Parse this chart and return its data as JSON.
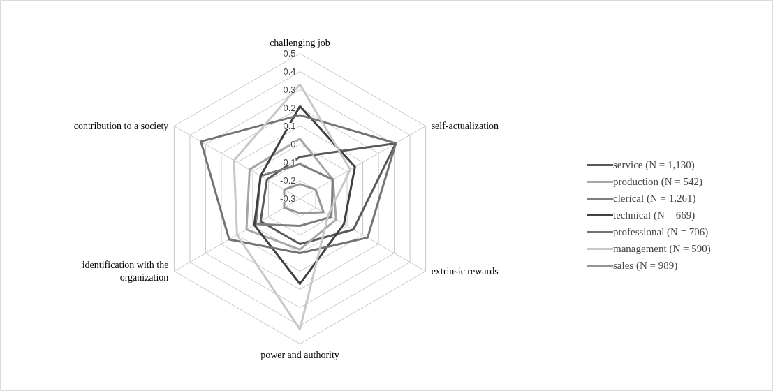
{
  "chart_data": {
    "type": "radar",
    "categories": [
      "challenging job",
      "self-actualization",
      "extrinsic rewards",
      "power and authority",
      "identification with the\norganization",
      "contribution to a society"
    ],
    "ylim": [
      -0.3,
      0.5
    ],
    "yticks": [
      -0.3,
      -0.2,
      -0.1,
      0,
      0.1,
      0.2,
      0.3,
      0.4,
      0.5
    ],
    "grid": true,
    "legend": "right",
    "line_style": "solid",
    "marker": "none",
    "series": [
      {
        "name": "service (N = 1,130)",
        "color": "#595959",
        "values": [
          -0.07,
          0.31,
          0.04,
          -0.05,
          -0.05,
          -0.09
        ]
      },
      {
        "name": "production (N = 542)",
        "color": "#a6a6a6",
        "values": [
          0.03,
          -0.09,
          -0.07,
          -0.02,
          0.04,
          0.02
        ]
      },
      {
        "name": "clerical (N = 1,261)",
        "color": "#7f7f7f",
        "values": [
          -0.11,
          -0.09,
          -0.1,
          -0.15,
          -0.02,
          -0.05
        ]
      },
      {
        "name": "technical (N = 669)",
        "color": "#404040",
        "values": [
          0.21,
          0.05,
          -0.02,
          0.17,
          -0.01,
          -0.05
        ]
      },
      {
        "name": "professional (N = 706)",
        "color": "#737373",
        "values": [
          0.16,
          0.31,
          0.13,
          0.0,
          0.15,
          0.33
        ]
      },
      {
        "name": "management (N = 590)",
        "color": "#c8c8c8",
        "values": [
          0.33,
          0.02,
          -0.12,
          0.42,
          0.1,
          0.12
        ]
      },
      {
        "name": "sales (N = 989)",
        "color": "#969696",
        "values": [
          -0.22,
          -0.2,
          -0.15,
          -0.22,
          -0.2,
          -0.2
        ]
      }
    ]
  }
}
